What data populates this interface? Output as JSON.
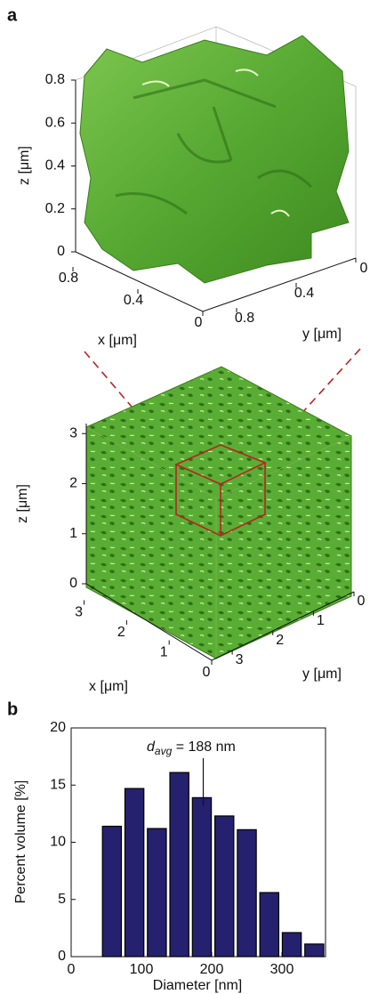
{
  "chart_data": [
    {
      "type": "surface3d",
      "panel_label": "a",
      "xlabel": "x [μm]",
      "ylabel": "y [μm]",
      "zlabel": "z [μm]",
      "xlim": [
        0,
        0.8
      ],
      "ylim": [
        0,
        0.8
      ],
      "zlim": [
        0,
        0.8
      ],
      "xticks": [
        0,
        0.4,
        0.8
      ],
      "yticks": [
        0,
        0.4,
        0.8
      ],
      "zticks": [
        0,
        0.2,
        0.4,
        0.6,
        0.8
      ],
      "color": "#5aad34"
    },
    {
      "type": "surface3d",
      "xlabel": "x [μm]",
      "ylabel": "y [μm]",
      "zlabel": "z [μm]",
      "xlim": [
        0,
        3.2
      ],
      "ylim": [
        0,
        3.2
      ],
      "zlim": [
        0,
        3.2
      ],
      "xticks": [
        0,
        1,
        2,
        3
      ],
      "yticks": [
        0,
        1,
        2,
        3
      ],
      "zticks": [
        0,
        1,
        2,
        3
      ],
      "color": "#5aad34"
    },
    {
      "type": "histogram",
      "panel_label": "b",
      "xlabel": "Diameter [nm]",
      "ylabel": "Percent volume [%]",
      "bins": [
        42,
        74,
        106,
        138,
        170,
        202,
        234,
        266,
        298,
        330,
        362
      ],
      "values": [
        11.4,
        14.7,
        11.2,
        16.1,
        13.9,
        12.3,
        11.1,
        5.6,
        2.1,
        1.1
      ],
      "color": "#25216e",
      "xlim": [
        0,
        362
      ],
      "ylim": [
        0,
        20
      ],
      "xticks": [
        0,
        100,
        200,
        300
      ],
      "yticks": [
        0,
        5,
        10,
        15,
        20
      ],
      "annotation": {
        "symbol": "d",
        "subscript": "avg",
        "text": " = 188 nm",
        "value": 188
      }
    }
  ]
}
